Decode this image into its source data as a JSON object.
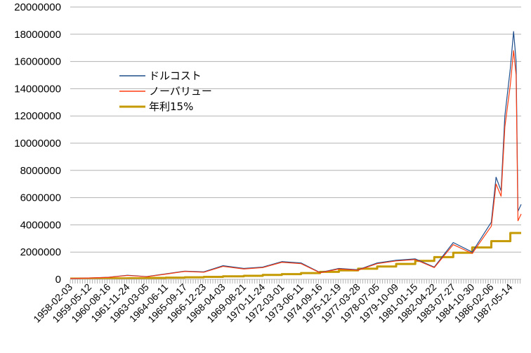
{
  "colors": {
    "dollar_cost": "#1f4e8c",
    "no_value": "#ff3b10",
    "annual15": "#c49a00",
    "grid": "#b3b3b3"
  },
  "chart_data": {
    "type": "line",
    "title": "",
    "xlabel": "",
    "ylabel": "",
    "ylim": [
      0,
      20000000
    ],
    "grid": true,
    "legend_position": "upper-left",
    "y_ticks": [
      "0",
      "2000000",
      "4000000",
      "6000000",
      "8000000",
      "10000000",
      "12000000",
      "14000000",
      "16000000",
      "18000000",
      "20000000"
    ],
    "x_tick_labels": [
      "1958-02-03",
      "1959-05-12",
      "1960-08-16",
      "1961-11-24",
      "1963-03-05",
      "1964-06-11",
      "1965-09-17",
      "1966-12-23",
      "1968-04-03",
      "1969-08-21",
      "1970-11-24",
      "1972-03-01",
      "1973-06-11",
      "1974-09-16",
      "1975-12-19",
      "1977-03-28",
      "1978-07-05",
      "1979-10-09",
      "1981-01-15",
      "1982-04-22",
      "1983-07-27",
      "1984-10-30",
      "1986-02-06",
      "1987-05-14"
    ],
    "series": [
      {
        "name": "ドルコスト",
        "x": [
          "1958-02-03",
          "1959-05-12",
          "1960-08-16",
          "1961-11-24",
          "1963-03-05",
          "1964-06-11",
          "1965-09-17",
          "1966-12-23",
          "1968-04-03",
          "1969-08-21",
          "1970-11-24",
          "1972-03-01",
          "1973-06-11",
          "1974-09-16",
          "1975-12-19",
          "1977-03-28",
          "1978-07-05",
          "1979-10-09",
          "1981-01-15",
          "1982-04-22",
          "1983-07-27",
          "1984-10-30",
          "1986-02-06",
          "1986-06-01",
          "1986-10-01",
          "1987-01-01",
          "1987-05-14",
          "1987-08-01",
          "1987-10-01",
          "1987-11-15",
          "1988-02-01"
        ],
        "values": [
          50000,
          100000,
          150000,
          300000,
          200000,
          400000,
          600000,
          550000,
          1000000,
          800000,
          900000,
          1300000,
          1200000,
          500000,
          800000,
          700000,
          1200000,
          1400000,
          1500000,
          900000,
          2700000,
          2000000,
          4200000,
          7500000,
          6500000,
          12000000,
          15500000,
          18200000,
          16000000,
          5000000,
          5500000
        ]
      },
      {
        "name": "ノーバリュー",
        "x": [
          "1958-02-03",
          "1959-05-12",
          "1960-08-16",
          "1961-11-24",
          "1963-03-05",
          "1964-06-11",
          "1965-09-17",
          "1966-12-23",
          "1968-04-03",
          "1969-08-21",
          "1970-11-24",
          "1972-03-01",
          "1973-06-11",
          "1974-09-16",
          "1975-12-19",
          "1977-03-28",
          "1978-07-05",
          "1979-10-09",
          "1981-01-15",
          "1982-04-22",
          "1983-07-27",
          "1984-10-30",
          "1986-02-06",
          "1986-06-01",
          "1986-10-01",
          "1987-01-01",
          "1987-05-14",
          "1987-08-01",
          "1987-10-01",
          "1987-11-15",
          "1988-02-01"
        ],
        "values": [
          50000,
          95000,
          140000,
          280000,
          190000,
          380000,
          580000,
          520000,
          950000,
          760000,
          860000,
          1250000,
          1150000,
          480000,
          760000,
          670000,
          1150000,
          1350000,
          1450000,
          860000,
          2550000,
          1900000,
          3900000,
          7000000,
          6100000,
          11200000,
          14300000,
          16800000,
          15000000,
          4300000,
          4800000
        ]
      },
      {
        "name": "年利15%",
        "x": [
          "1958-02-03",
          "1959-05-12",
          "1960-08-16",
          "1961-11-24",
          "1963-03-05",
          "1964-06-11",
          "1965-09-17",
          "1966-12-23",
          "1968-04-03",
          "1969-08-21",
          "1970-11-24",
          "1972-03-01",
          "1973-06-11",
          "1974-09-16",
          "1975-12-19",
          "1977-03-28",
          "1978-07-05",
          "1979-10-09",
          "1981-01-15",
          "1982-04-22",
          "1983-07-27",
          "1984-10-30",
          "1986-02-06",
          "1987-05-14",
          "1988-02-01"
        ],
        "values": [
          50000,
          60000,
          70000,
          80000,
          100000,
          120000,
          150000,
          180000,
          220000,
          260000,
          320000,
          380000,
          460000,
          550000,
          660000,
          780000,
          940000,
          1130000,
          1350000,
          1630000,
          1950000,
          2340000,
          2800000,
          3400000,
          3400000
        ]
      }
    ]
  }
}
